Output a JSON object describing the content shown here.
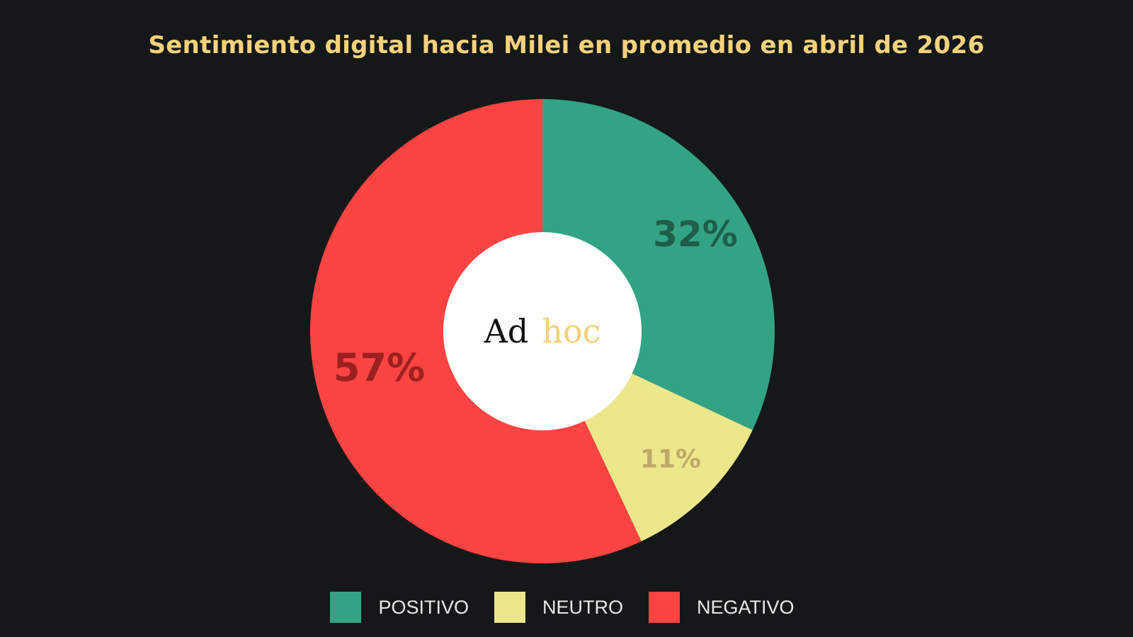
{
  "chart_data": {
    "type": "pie",
    "title": "Sentimiento digital hacia Milei en promedio en abril de 2026",
    "categories": [
      "POSITIVO",
      "NEUTRO",
      "NEGATIVO"
    ],
    "values": [
      32,
      11,
      57
    ],
    "value_labels": [
      "32%",
      "11%",
      "57%"
    ],
    "colors": [
      "#33a386",
      "#ece78b",
      "#fc4443"
    ],
    "label_colors": [
      "#1f5e49",
      "#bfa86a",
      "#9c2020"
    ],
    "donut": true,
    "start_angle_deg": 0,
    "direction": "clockwise",
    "legend_position": "bottom"
  },
  "logo": {
    "part1": "Ad",
    "part2": "hoc"
  },
  "background_color": "#151819",
  "title_color": "#f6d27c"
}
